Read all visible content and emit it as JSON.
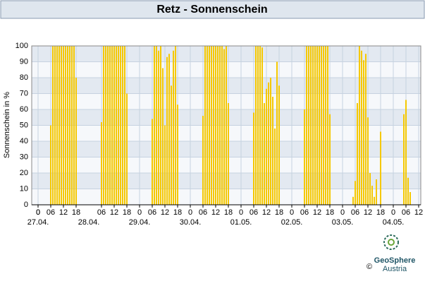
{
  "chart_data": {
    "type": "bar",
    "title": "Retz - Sonnenschein",
    "y_label": "Sonnenschein in %",
    "color": "#f5c800",
    "x": [
      6,
      7,
      8,
      9,
      10,
      11,
      12,
      13,
      14,
      15,
      16,
      17,
      18,
      30,
      31,
      32,
      33,
      34,
      35,
      36,
      37,
      38,
      39,
      40,
      41,
      42,
      54,
      55,
      56,
      57,
      58,
      59,
      60,
      61,
      62,
      63,
      64,
      65,
      66,
      78,
      79,
      80,
      81,
      82,
      83,
      84,
      85,
      86,
      87,
      88,
      89,
      90,
      102,
      103,
      104,
      105,
      106,
      107,
      108,
      109,
      110,
      111,
      112,
      113,
      114,
      126,
      127,
      128,
      129,
      130,
      131,
      132,
      133,
      134,
      135,
      136,
      137,
      138,
      149,
      150,
      151,
      152,
      153,
      154,
      155,
      156,
      157,
      158,
      159,
      160,
      162,
      173,
      174,
      175,
      176
    ],
    "values": [
      50,
      100,
      100,
      100,
      100,
      100,
      100,
      100,
      100,
      100,
      100,
      100,
      80,
      52,
      100,
      100,
      100,
      100,
      100,
      100,
      100,
      100,
      100,
      100,
      100,
      70,
      54,
      100,
      100,
      97,
      100,
      86,
      50,
      93,
      95,
      75,
      97,
      100,
      63,
      56,
      100,
      100,
      100,
      100,
      100,
      100,
      100,
      100,
      100,
      98,
      100,
      64,
      58,
      100,
      100,
      100,
      99,
      64,
      73,
      77,
      80,
      68,
      48,
      90,
      75,
      60,
      100,
      100,
      100,
      100,
      100,
      100,
      100,
      100,
      100,
      100,
      100,
      57,
      5,
      15,
      64,
      100,
      97,
      91,
      95,
      55,
      20,
      12,
      5,
      16,
      46,
      57,
      66,
      17,
      8
    ],
    "xlim": [
      -3,
      181
    ],
    "ylim": [
      0,
      100
    ],
    "yticks": [
      0,
      10,
      20,
      30,
      40,
      50,
      60,
      70,
      80,
      90,
      100
    ],
    "xticks": [
      0,
      {
        "value": 6,
        "label": "06"
      },
      12,
      18,
      0,
      {
        "value": 30,
        "label": "06"
      },
      {
        "value": 36,
        "label": "12"
      },
      {
        "value": 42,
        "label": "18"
      },
      {
        "value": 48,
        "label": "0"
      },
      {
        "value": 54,
        "label": "06"
      },
      {
        "value": 60,
        "label": "12"
      },
      {
        "value": 66,
        "label": "18"
      },
      {
        "value": 72,
        "label": "0"
      },
      {
        "value": 78,
        "label": "06"
      },
      {
        "value": 84,
        "label": "12"
      },
      {
        "value": 90,
        "label": "18"
      },
      {
        "value": 96,
        "label": "0"
      },
      {
        "value": 102,
        "label": "06"
      },
      {
        "value": 108,
        "label": "12"
      },
      {
        "value": 114,
        "label": "18"
      },
      {
        "value": 120,
        "label": "0"
      },
      {
        "value": 126,
        "label": "06"
      },
      {
        "value": 132,
        "label": "12"
      },
      {
        "value": 138,
        "label": "18"
      },
      {
        "value": 144,
        "label": "0"
      },
      {
        "value": 150,
        "label": "06"
      },
      {
        "value": 156,
        "label": "12"
      },
      {
        "value": 162,
        "label": "18"
      },
      {
        "value": 168,
        "label": "0"
      },
      {
        "value": 174,
        "label": "06"
      },
      {
        "value": 180,
        "label": "12"
      }
    ],
    "date_labels": [
      {
        "value": 0,
        "label": "27.04."
      },
      {
        "value": 24,
        "label": "28.04."
      },
      {
        "value": 48,
        "label": "29.04."
      },
      {
        "value": 72,
        "label": "30.04."
      },
      {
        "value": 96,
        "label": "01.05."
      },
      {
        "value": 120,
        "label": "02.05."
      },
      {
        "value": 144,
        "label": "03.05."
      },
      {
        "value": 168,
        "label": "04.05."
      }
    ],
    "grid": true
  },
  "logo": {
    "name": "GeoSphere",
    "sub": "Austria",
    "copyright": "©"
  }
}
